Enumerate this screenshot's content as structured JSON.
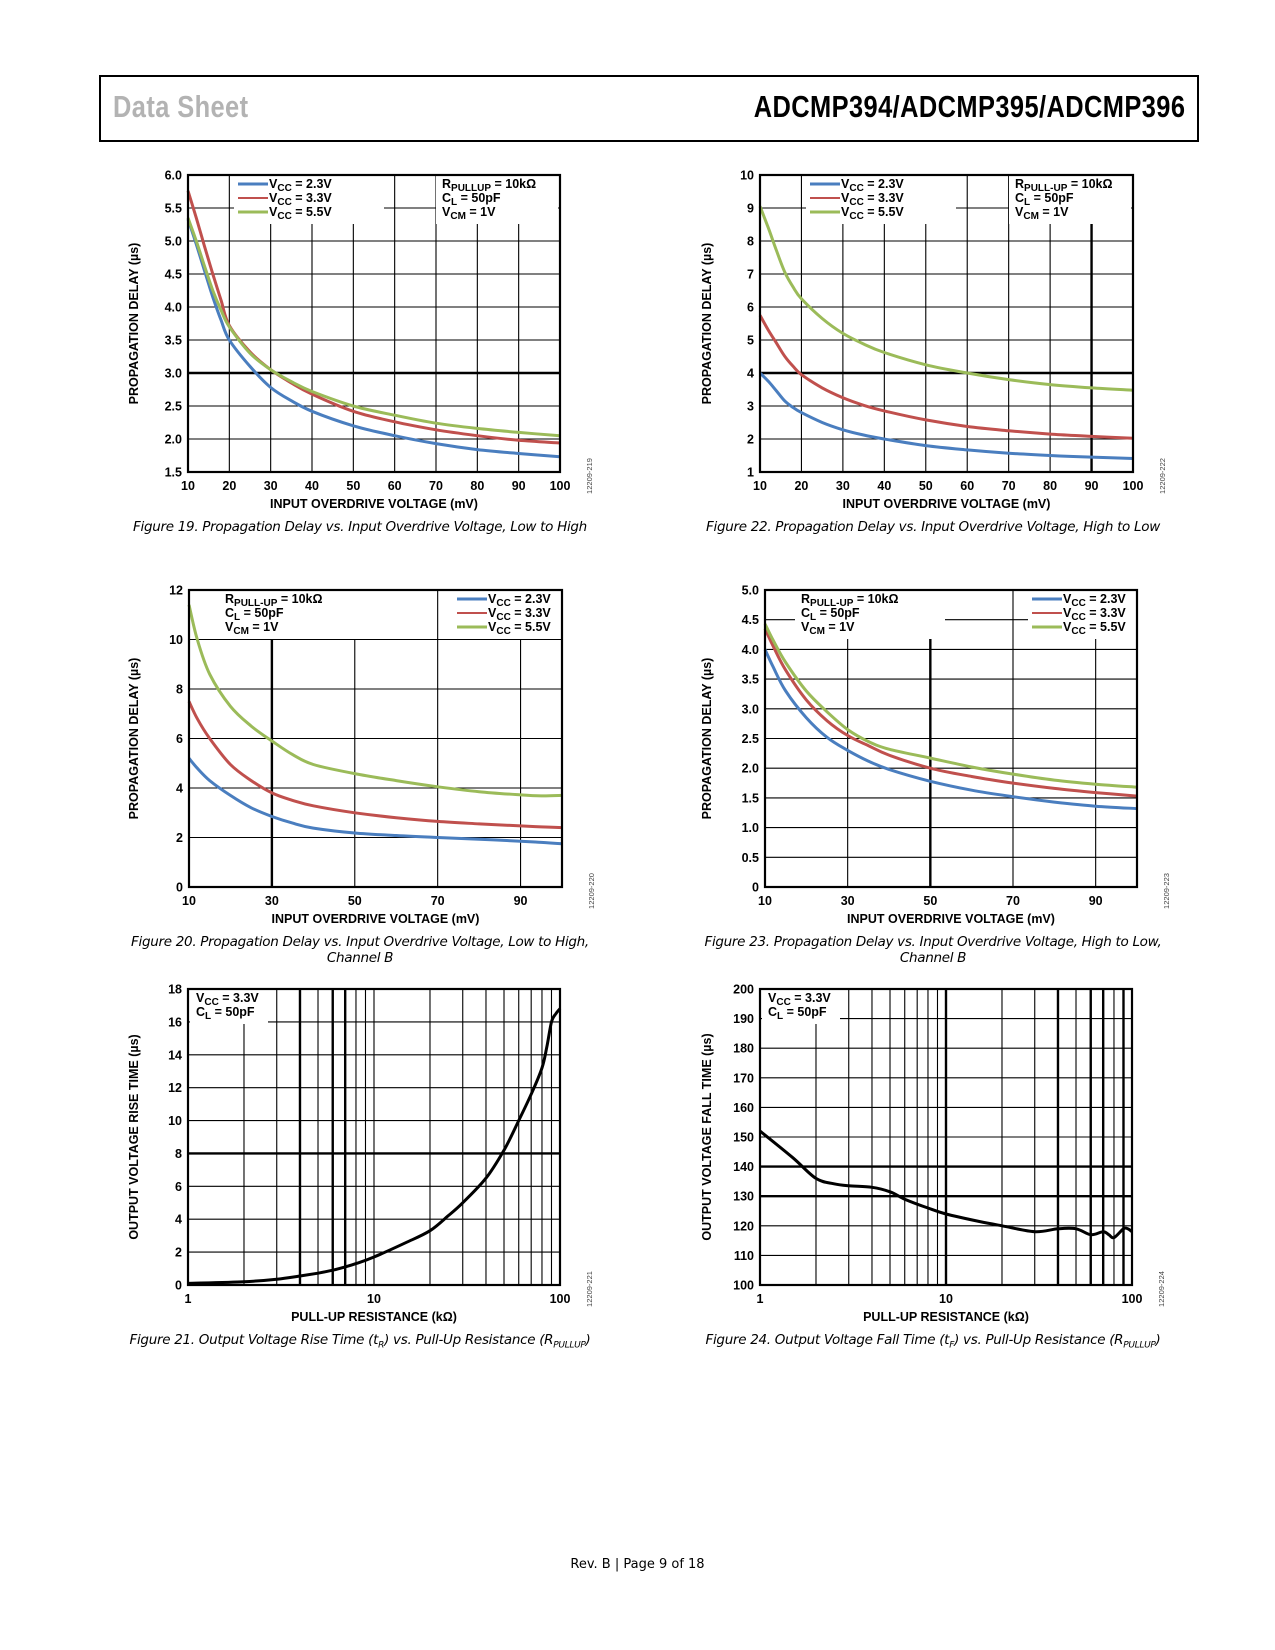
{
  "header": {
    "left_title": "Data Sheet",
    "right_title": "ADCMP394/ADCMP395/ADCMP396"
  },
  "footer": {
    "text": "Rev. B | Page 9 of 18"
  },
  "colors": {
    "vcc_2_3": "#4a7ebf",
    "vcc_3_3": "#c0504d",
    "vcc_5_5": "#9bbb59",
    "black": "#000000"
  },
  "chart_data": [
    {
      "id": "fig19",
      "type": "line",
      "title": "Figure 19. Propagation Delay vs. Input Overdrive Voltage, Low to High",
      "caption_lines": [
        "Figure 19. Propagation Delay vs. Input Overdrive Voltage, Low to High"
      ],
      "xlabel": "INPUT OVERDRIVE VOLTAGE (mV)",
      "ylabel": "PROPAGATION DELAY (µs)",
      "xscale": "linear",
      "xlim": [
        10,
        100
      ],
      "ylim": [
        1.5,
        6.0
      ],
      "xticks": [
        "10",
        "20",
        "30",
        "40",
        "50",
        "60",
        "70",
        "80",
        "90",
        "100"
      ],
      "xtick_values": [
        10,
        20,
        30,
        40,
        50,
        60,
        70,
        80,
        90,
        100
      ],
      "yticks": [
        "1.5",
        "2.0",
        "2.5",
        "3.0",
        "3.5",
        "4.0",
        "4.5",
        "5.0",
        "5.5",
        "6.0"
      ],
      "ytick_values": [
        1.5,
        2.0,
        2.5,
        3.0,
        3.5,
        4.0,
        4.5,
        5.0,
        5.5,
        6.0
      ],
      "bold_y": [
        3.0
      ],
      "bold_x": [],
      "code": "12209-219",
      "legend_position": "top-left",
      "legend": [
        {
          "label_main": "V",
          "label_sub": "CC",
          "label_rest": " = 2.3V",
          "color_key": "vcc_2_3"
        },
        {
          "label_main": "V",
          "label_sub": "CC",
          "label_rest": " = 3.3V",
          "color_key": "vcc_3_3"
        },
        {
          "label_main": "V",
          "label_sub": "CC",
          "label_rest": " = 5.5V",
          "color_key": "vcc_5_5"
        }
      ],
      "conditions_position": "top-right",
      "conditions": [
        {
          "main": "R",
          "sub": "PULLUP",
          "rest": " = 10kΩ"
        },
        {
          "main": "C",
          "sub": "L",
          "rest": " = 50pF"
        },
        {
          "main": "V",
          "sub": "CM",
          "rest": " = 1V"
        }
      ],
      "x": [
        10,
        12,
        14,
        16,
        18,
        20,
        25,
        30,
        35,
        40,
        50,
        60,
        70,
        80,
        90,
        100
      ],
      "series": [
        {
          "name": "VCC = 2.3V",
          "color_key": "vcc_2_3",
          "values": [
            5.33,
            4.95,
            4.55,
            4.15,
            3.8,
            3.5,
            3.1,
            2.78,
            2.58,
            2.42,
            2.2,
            2.05,
            1.93,
            1.84,
            1.78,
            1.73
          ]
        },
        {
          "name": "VCC = 3.3V",
          "color_key": "vcc_3_3",
          "values": [
            5.76,
            5.35,
            4.92,
            4.5,
            4.1,
            3.72,
            3.32,
            3.05,
            2.85,
            2.68,
            2.42,
            2.26,
            2.14,
            2.05,
            1.98,
            1.94
          ]
        },
        {
          "name": "VCC = 5.5V",
          "color_key": "vcc_5_5",
          "values": [
            5.35,
            5.0,
            4.62,
            4.25,
            3.95,
            3.7,
            3.3,
            3.05,
            2.87,
            2.72,
            2.5,
            2.36,
            2.24,
            2.16,
            2.1,
            2.05
          ]
        }
      ]
    },
    {
      "id": "fig22",
      "type": "line",
      "title": "Figure 22. Propagation Delay vs. Input Overdrive Voltage, High to Low",
      "caption_lines": [
        "Figure 22. Propagation Delay vs. Input Overdrive Voltage, High to Low"
      ],
      "xlabel": "INPUT OVERDRIVE VOLTAGE (mV)",
      "ylabel": "PROPAGATION DELAY (µs)",
      "xscale": "linear",
      "xlim": [
        10,
        100
      ],
      "ylim": [
        1,
        10
      ],
      "xticks": [
        "10",
        "20",
        "30",
        "40",
        "50",
        "60",
        "70",
        "80",
        "90",
        "100"
      ],
      "xtick_values": [
        10,
        20,
        30,
        40,
        50,
        60,
        70,
        80,
        90,
        100
      ],
      "yticks": [
        "1",
        "2",
        "3",
        "4",
        "5",
        "6",
        "7",
        "8",
        "9",
        "10"
      ],
      "ytick_values": [
        1,
        2,
        3,
        4,
        5,
        6,
        7,
        8,
        9,
        10
      ],
      "bold_y": [
        4
      ],
      "bold_x": [
        90
      ],
      "code": "12209-222",
      "legend_position": "top-left",
      "legend": [
        {
          "label_main": "V",
          "label_sub": "CC",
          "label_rest": " = 2.3V",
          "color_key": "vcc_2_3"
        },
        {
          "label_main": "V",
          "label_sub": "CC",
          "label_rest": " = 3.3V",
          "color_key": "vcc_3_3"
        },
        {
          "label_main": "V",
          "label_sub": "CC",
          "label_rest": " = 5.5V",
          "color_key": "vcc_5_5"
        }
      ],
      "conditions_position": "top-right",
      "conditions": [
        {
          "main": "R",
          "sub": "PULL-UP",
          "rest": " = 10kΩ"
        },
        {
          "main": "C",
          "sub": "L",
          "rest": " = 50pF"
        },
        {
          "main": "V",
          "sub": "CM",
          "rest": " = 1V"
        }
      ],
      "x": [
        10,
        12,
        14,
        16,
        18,
        20,
        25,
        30,
        35,
        40,
        50,
        60,
        70,
        80,
        90,
        100
      ],
      "series": [
        {
          "name": "VCC = 2.3V",
          "color_key": "vcc_2_3",
          "values": [
            4.0,
            3.75,
            3.45,
            3.15,
            2.95,
            2.8,
            2.5,
            2.28,
            2.12,
            2.0,
            1.8,
            1.67,
            1.57,
            1.5,
            1.45,
            1.41
          ]
        },
        {
          "name": "VCC = 3.3V",
          "color_key": "vcc_3_3",
          "values": [
            5.75,
            5.3,
            4.9,
            4.5,
            4.2,
            3.95,
            3.55,
            3.25,
            3.02,
            2.85,
            2.58,
            2.38,
            2.25,
            2.15,
            2.08,
            2.02
          ]
        },
        {
          "name": "VCC = 5.5V",
          "color_key": "vcc_5_5",
          "values": [
            9.05,
            8.4,
            7.7,
            7.05,
            6.6,
            6.25,
            5.65,
            5.2,
            4.88,
            4.62,
            4.25,
            4.0,
            3.8,
            3.65,
            3.55,
            3.48
          ]
        }
      ]
    },
    {
      "id": "fig20",
      "type": "line",
      "title": "Figure 20. Propagation Delay vs. Input Overdrive Voltage, Low to High, Channel B",
      "caption_lines": [
        "Figure 20. Propagation Delay vs. Input Overdrive Voltage, Low to High,",
        "Channel B"
      ],
      "xlabel": "INPUT OVERDRIVE VOLTAGE (mV)",
      "ylabel": "PROPAGATION DELAY (µs)",
      "xscale": "linear",
      "xlim": [
        10,
        100
      ],
      "ylim": [
        0,
        12
      ],
      "xticks": [
        "10",
        "30",
        "50",
        "70",
        "90"
      ],
      "xtick_values": [
        10,
        30,
        50,
        70,
        90
      ],
      "grid_x": [
        10,
        30,
        50,
        70,
        90,
        100
      ],
      "yticks": [
        "0",
        "2",
        "4",
        "6",
        "8",
        "10",
        "12"
      ],
      "ytick_values": [
        0,
        2,
        4,
        6,
        8,
        10,
        12
      ],
      "bold_y": [],
      "bold_x": [
        30
      ],
      "code": "12209-220",
      "legend_position": "top-right",
      "legend": [
        {
          "label_main": "V",
          "label_sub": "CC",
          "label_rest": " = 2.3V",
          "color_key": "vcc_2_3"
        },
        {
          "label_main": "V",
          "label_sub": "CC",
          "label_rest": " = 3.3V",
          "color_key": "vcc_3_3"
        },
        {
          "label_main": "V",
          "label_sub": "CC",
          "label_rest": " = 5.5V",
          "color_key": "vcc_5_5"
        }
      ],
      "conditions_position": "top-left",
      "conditions": [
        {
          "main": "R",
          "sub": "PULL-UP",
          "rest": " = 10kΩ"
        },
        {
          "main": "C",
          "sub": "L",
          "rest": " = 50pF"
        },
        {
          "main": "V",
          "sub": "CM",
          "rest": " = 1V"
        }
      ],
      "x": [
        10,
        12,
        15,
        20,
        25,
        30,
        35,
        40,
        50,
        60,
        70,
        80,
        90,
        95,
        100
      ],
      "series": [
        {
          "name": "VCC = 2.3V",
          "color_key": "vcc_2_3",
          "values": [
            5.2,
            4.8,
            4.3,
            3.7,
            3.2,
            2.85,
            2.58,
            2.38,
            2.18,
            2.08,
            2.0,
            1.93,
            1.85,
            1.8,
            1.75
          ]
        },
        {
          "name": "VCC = 3.3V",
          "color_key": "vcc_3_3",
          "values": [
            7.5,
            6.8,
            6.0,
            4.95,
            4.3,
            3.8,
            3.5,
            3.28,
            3.0,
            2.8,
            2.65,
            2.55,
            2.47,
            2.43,
            2.4
          ]
        },
        {
          "name": "VCC = 5.5V",
          "color_key": "vcc_5_5",
          "values": [
            11.4,
            10.0,
            8.6,
            7.3,
            6.5,
            5.9,
            5.35,
            4.95,
            4.58,
            4.3,
            4.05,
            3.85,
            3.72,
            3.68,
            3.7
          ]
        }
      ]
    },
    {
      "id": "fig23",
      "type": "line",
      "title": "Figure 23. Propagation Delay vs. Input Overdrive Voltage, High to Low, Channel B",
      "caption_lines": [
        "Figure 23. Propagation Delay vs. Input Overdrive Voltage, High to Low,",
        "Channel B"
      ],
      "xlabel": "INPUT OVERDRIVE VOLTAGE (mV)",
      "ylabel": "PROPAGATION DELAY (µs)",
      "xscale": "linear",
      "xlim": [
        10,
        100
      ],
      "ylim": [
        0,
        5.0
      ],
      "xticks": [
        "10",
        "30",
        "50",
        "70",
        "90"
      ],
      "xtick_values": [
        10,
        30,
        50,
        70,
        90
      ],
      "grid_x": [
        10,
        30,
        50,
        70,
        90,
        100
      ],
      "yticks": [
        "0",
        "0.5",
        "1.0",
        "1.5",
        "2.0",
        "2.5",
        "3.0",
        "3.5",
        "4.0",
        "4.5",
        "5.0"
      ],
      "ytick_values": [
        0,
        0.5,
        1.0,
        1.5,
        2.0,
        2.5,
        3.0,
        3.5,
        4.0,
        4.5,
        5.0
      ],
      "bold_y": [],
      "bold_x": [
        50
      ],
      "code": "12209-223",
      "legend_position": "top-right",
      "legend": [
        {
          "label_main": "V",
          "label_sub": "CC",
          "label_rest": " = 2.3V",
          "color_key": "vcc_2_3"
        },
        {
          "label_main": "V",
          "label_sub": "CC",
          "label_rest": " = 3.3V",
          "color_key": "vcc_3_3"
        },
        {
          "label_main": "V",
          "label_sub": "CC",
          "label_rest": " = 5.5V",
          "color_key": "vcc_5_5"
        }
      ],
      "conditions_position": "top-left",
      "conditions": [
        {
          "main": "R",
          "sub": "PULL-UP",
          "rest": " = 10kΩ"
        },
        {
          "main": "C",
          "sub": "L",
          "rest": " = 50pF"
        },
        {
          "main": "V",
          "sub": "CM",
          "rest": " = 1V"
        }
      ],
      "x": [
        10,
        12,
        15,
        20,
        25,
        30,
        35,
        40,
        50,
        60,
        70,
        80,
        90,
        100
      ],
      "series": [
        {
          "name": "VCC = 2.3V",
          "color_key": "vcc_2_3",
          "values": [
            4.0,
            3.7,
            3.3,
            2.85,
            2.52,
            2.3,
            2.12,
            1.98,
            1.78,
            1.63,
            1.52,
            1.43,
            1.36,
            1.32
          ]
        },
        {
          "name": "VCC = 3.3V",
          "color_key": "vcc_3_3",
          "values": [
            4.35,
            4.05,
            3.65,
            3.15,
            2.8,
            2.55,
            2.38,
            2.22,
            2.0,
            1.86,
            1.75,
            1.66,
            1.59,
            1.53
          ]
        },
        {
          "name": "VCC = 5.5V",
          "color_key": "vcc_5_5",
          "values": [
            4.43,
            4.15,
            3.78,
            3.3,
            2.95,
            2.65,
            2.45,
            2.32,
            2.17,
            2.02,
            1.9,
            1.8,
            1.73,
            1.68
          ]
        }
      ]
    },
    {
      "id": "fig21",
      "type": "line",
      "title": "Figure 21. Output Voltage Rise Time (tR) vs. Pull-Up Resistance (RPULLUP)",
      "caption_parts": [
        "Figure 21. Output Voltage Rise Time (t",
        "R",
        ") vs. Pull-Up Resistance (R",
        "PULLUP",
        ")"
      ],
      "xlabel": "PULL-UP RESISTANCE (kΩ)",
      "ylabel": "OUTPUT VOLTAGE RISE TIME (µs)",
      "xscale": "log",
      "xlim": [
        1,
        100
      ],
      "ylim": [
        0,
        18
      ],
      "xticks": [
        "1",
        "10",
        "100"
      ],
      "xtick_values": [
        1,
        10,
        100
      ],
      "grid_x": [
        2,
        3,
        4,
        5,
        6,
        7,
        8,
        9,
        20,
        30,
        40,
        50,
        60,
        70,
        80,
        90
      ],
      "bold_x": [
        4,
        6,
        7
      ],
      "yticks": [
        "0",
        "2",
        "4",
        "6",
        "8",
        "10",
        "12",
        "14",
        "16",
        "18"
      ],
      "ytick_values": [
        0,
        2,
        4,
        6,
        8,
        10,
        12,
        14,
        16,
        18
      ],
      "bold_y": [
        8
      ],
      "code": "12209-221",
      "legend_position": "none",
      "legend": [],
      "conditions_position": "top-left",
      "conditions": [
        {
          "main": "V",
          "sub": "CC",
          "rest": " = 3.3V"
        },
        {
          "main": "C",
          "sub": "L",
          "rest": " = 50pF"
        }
      ],
      "x": [
        1,
        2,
        3,
        4,
        5,
        6,
        7,
        8,
        10,
        15,
        20,
        25,
        30,
        40,
        50,
        60,
        70,
        80,
        85,
        90,
        95,
        100
      ],
      "series": [
        {
          "name": "Rise time",
          "color_key": "black",
          "values": [
            0.1,
            0.2,
            0.35,
            0.55,
            0.72,
            0.9,
            1.1,
            1.3,
            1.7,
            2.6,
            3.3,
            4.2,
            5.0,
            6.5,
            8.2,
            10.0,
            11.6,
            13.2,
            14.5,
            16.0,
            16.5,
            16.8
          ]
        }
      ]
    },
    {
      "id": "fig24",
      "type": "line",
      "title": "Figure 24. Output Voltage Fall Time (tF) vs. Pull-Up Resistance (RPULLUP)",
      "caption_parts": [
        "Figure 24. Output Voltage Fall Time (t",
        "F",
        ") vs. Pull-Up Resistance (R",
        "PULLUP",
        ")"
      ],
      "xlabel": "PULL-UP RESISTANCE (kΩ)",
      "ylabel": "OUTPUT VOLTAGE FALL TIME (µs)",
      "xscale": "log",
      "xlim": [
        1,
        100
      ],
      "ylim": [
        100,
        200
      ],
      "xticks": [
        "1",
        "10",
        "100"
      ],
      "xtick_values": [
        1,
        10,
        100
      ],
      "grid_x": [
        2,
        3,
        4,
        5,
        6,
        7,
        8,
        9,
        20,
        30,
        40,
        50,
        60,
        70,
        80,
        90
      ],
      "bold_x": [
        10,
        40,
        60,
        70,
        90
      ],
      "yticks": [
        "100",
        "110",
        "120",
        "130",
        "140",
        "150",
        "160",
        "170",
        "180",
        "190",
        "200"
      ],
      "ytick_values": [
        100,
        110,
        120,
        130,
        140,
        150,
        160,
        170,
        180,
        190,
        200
      ],
      "bold_y": [
        130,
        140
      ],
      "code": "12209-224",
      "legend_position": "none",
      "legend": [],
      "conditions_position": "top-left",
      "conditions": [
        {
          "main": "V",
          "sub": "CC",
          "rest": " = 3.3V"
        },
        {
          "main": "C",
          "sub": "L",
          "rest": " = 50pF"
        }
      ],
      "x": [
        1,
        1.5,
        2,
        2.5,
        3,
        4,
        5,
        6,
        8,
        10,
        15,
        20,
        30,
        40,
        50,
        60,
        70,
        75,
        80,
        90,
        95,
        100
      ],
      "series": [
        {
          "name": "Fall time",
          "color_key": "black",
          "values": [
            152,
            143,
            136,
            134.2,
            133.5,
            133,
            131.5,
            129,
            126,
            124,
            121.5,
            120,
            118,
            119,
            119,
            117,
            118,
            117,
            116,
            119,
            119,
            118
          ]
        }
      ]
    }
  ]
}
